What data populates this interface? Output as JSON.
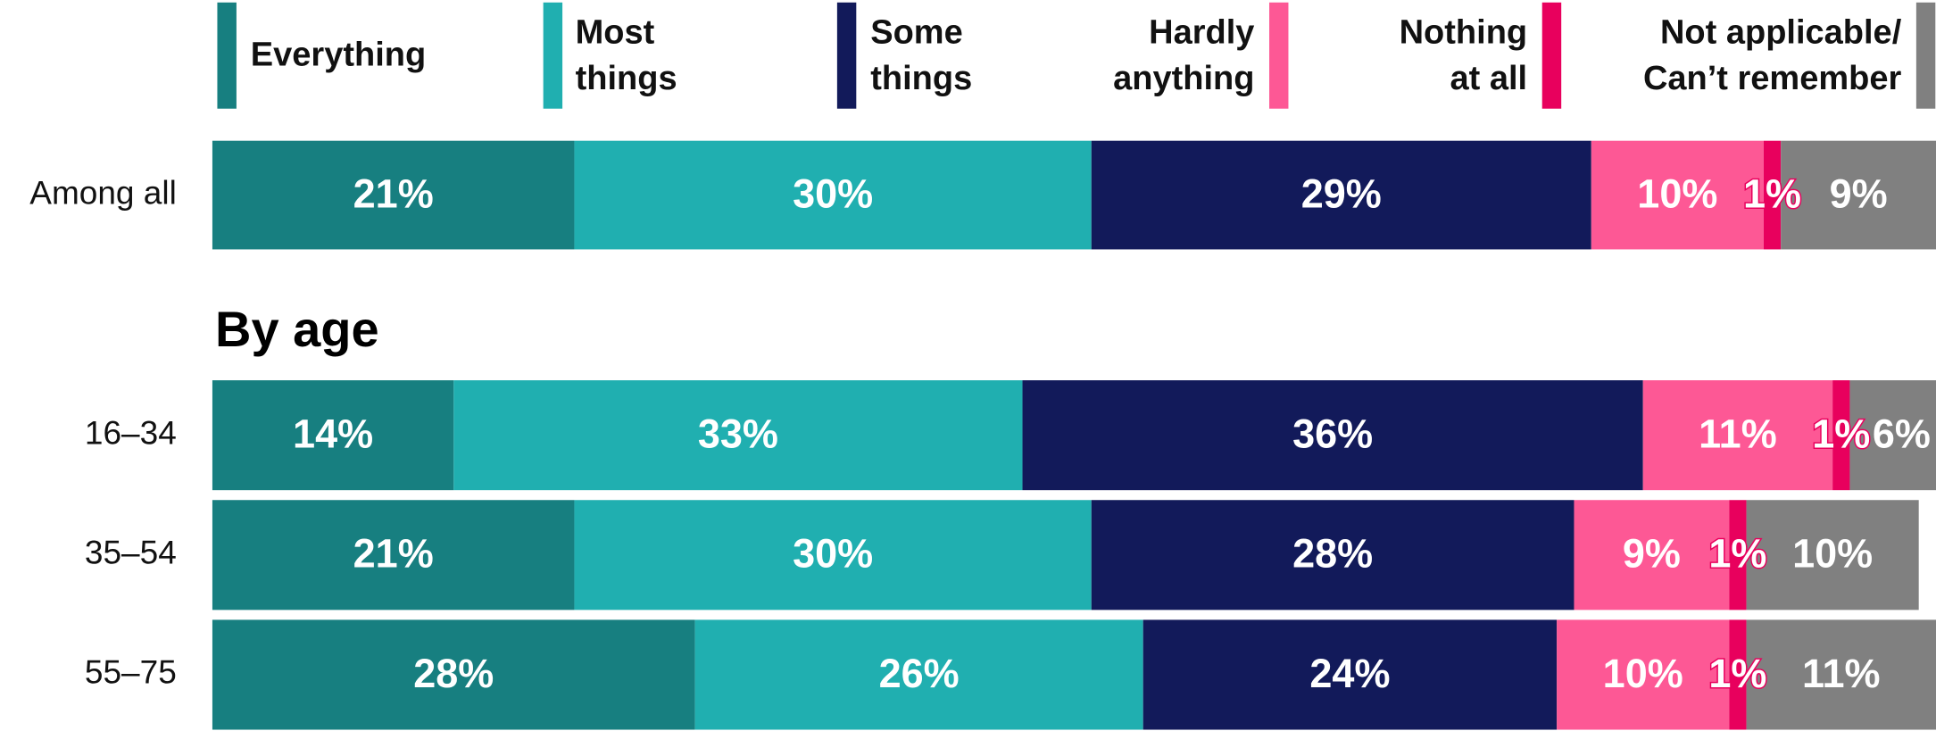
{
  "chart_data": {
    "type": "stacked_barh",
    "annotations": [
      "By age"
    ],
    "categories": [
      "Among all",
      "16–34",
      "35–54",
      "55–75"
    ],
    "xlim": [
      0,
      100
    ],
    "series": [
      {
        "name": "Everything",
        "color": "#177f80",
        "values": [
          21,
          14,
          21,
          28
        ],
        "value_labels": [
          "21%",
          "14%",
          "21%",
          "28%"
        ]
      },
      {
        "name": "Most things",
        "color": "#20afb0",
        "values": [
          30,
          33,
          30,
          26
        ],
        "value_labels": [
          "30%",
          "33%",
          "30%",
          "26%"
        ]
      },
      {
        "name": "Some things",
        "color": "#121a5a",
        "values": [
          29,
          36,
          28,
          24
        ],
        "value_labels": [
          "29%",
          "36%",
          "28%",
          "24%"
        ]
      },
      {
        "name": "Hardly anything",
        "color": "#fd5895",
        "values": [
          10,
          11,
          9,
          10
        ],
        "value_labels": [
          "10%",
          "11%",
          "9%",
          "10%"
        ]
      },
      {
        "name": "Nothing at all",
        "color": "#e8005d",
        "values": [
          1,
          1,
          1,
          1
        ],
        "value_labels": [
          "1%",
          "1%",
          "1%",
          "1%"
        ]
      },
      {
        "name": "Not applicable/ Can’t remember",
        "color": "#808080",
        "values": [
          9,
          6,
          10,
          11
        ],
        "value_labels": [
          "9%",
          "6%",
          "10%",
          "11%"
        ]
      }
    ]
  }
}
